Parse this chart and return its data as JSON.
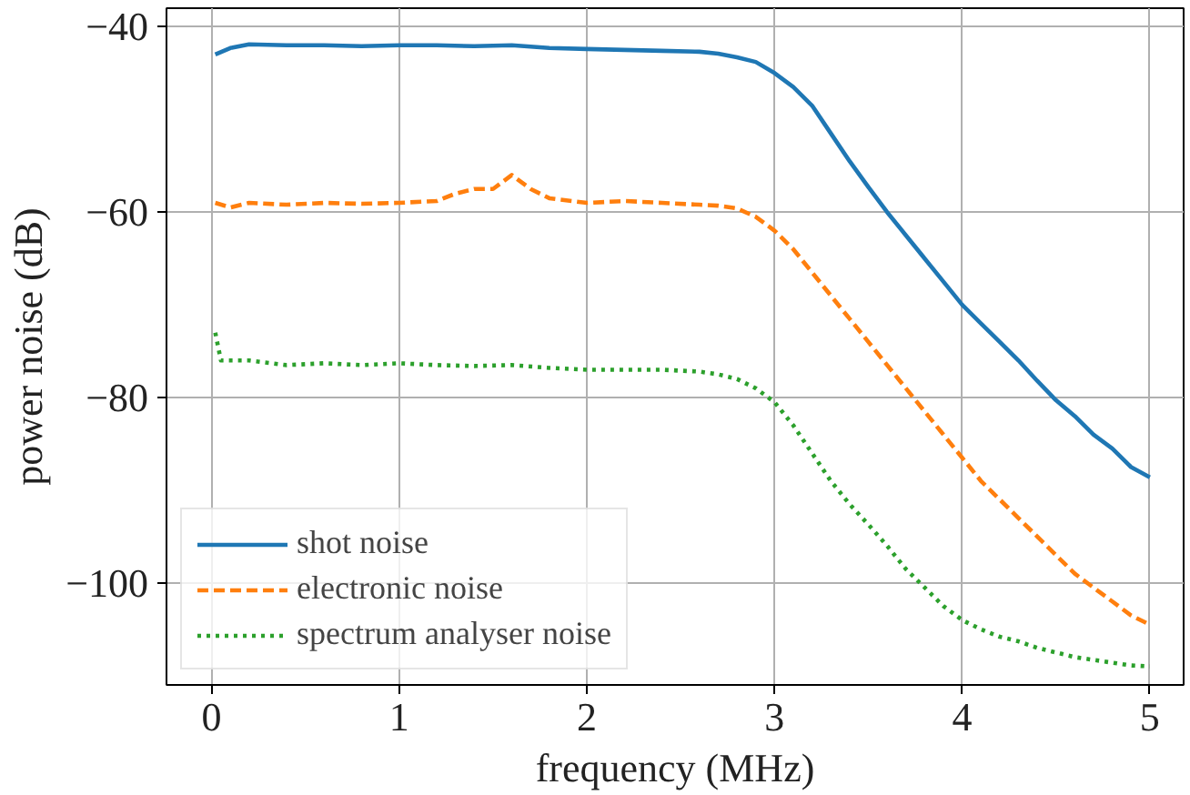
{
  "chart_data": {
    "type": "line",
    "xlabel": "frequency (MHz)",
    "ylabel": "power noise (dB)",
    "xlim": [
      -0.24,
      5.18
    ],
    "ylim": [
      -111,
      -38
    ],
    "xticks": [
      0,
      1,
      2,
      3,
      4,
      5
    ],
    "yticks": [
      {
        "value": -40,
        "label": "−40"
      },
      {
        "value": -60,
        "label": "−60"
      },
      {
        "value": -80,
        "label": "−80"
      },
      {
        "value": -100,
        "label": "−100"
      }
    ],
    "grid": true,
    "legend": "bottom left",
    "series": [
      {
        "name": "shot noise",
        "color": "#1f77b4",
        "line_style": "solid",
        "x": [
          0.02,
          0.1,
          0.2,
          0.4,
          0.6,
          0.8,
          1.0,
          1.2,
          1.4,
          1.6,
          1.8,
          2.0,
          2.2,
          2.4,
          2.6,
          2.7,
          2.8,
          2.9,
          3.0,
          3.1,
          3.2,
          3.3,
          3.4,
          3.5,
          3.6,
          3.7,
          3.8,
          3.9,
          4.0,
          4.1,
          4.2,
          4.3,
          4.4,
          4.5,
          4.6,
          4.7,
          4.8,
          4.9,
          5.0
        ],
        "values": [
          -43,
          -42.3,
          -41.9,
          -42,
          -42,
          -42.1,
          -42,
          -42,
          -42.1,
          -42,
          -42.3,
          -42.4,
          -42.5,
          -42.6,
          -42.7,
          -42.9,
          -43.3,
          -43.8,
          -45,
          -46.5,
          -48.5,
          -51.5,
          -54.5,
          -57.3,
          -60,
          -62.5,
          -65,
          -67.5,
          -70,
          -72,
          -74,
          -76,
          -78.2,
          -80.3,
          -82,
          -84,
          -85.5,
          -87.5,
          -88.6
        ]
      },
      {
        "name": "electronic noise",
        "color": "#ff7f0e",
        "line_style": "dashed",
        "x": [
          0.02,
          0.1,
          0.2,
          0.4,
          0.6,
          0.8,
          1.0,
          1.2,
          1.3,
          1.4,
          1.5,
          1.6,
          1.7,
          1.8,
          2.0,
          2.2,
          2.4,
          2.6,
          2.7,
          2.8,
          2.9,
          3.0,
          3.1,
          3.2,
          3.3,
          3.4,
          3.5,
          3.6,
          3.7,
          3.8,
          3.9,
          4.0,
          4.1,
          4.2,
          4.3,
          4.4,
          4.5,
          4.6,
          4.7,
          4.8,
          4.9,
          5.0
        ],
        "values": [
          -59,
          -59.5,
          -59,
          -59.2,
          -59,
          -59.1,
          -59,
          -58.8,
          -58,
          -57.5,
          -57.5,
          -56,
          -57.5,
          -58.5,
          -59,
          -58.8,
          -59,
          -59.2,
          -59.3,
          -59.6,
          -60.5,
          -62,
          -64,
          -66.5,
          -69,
          -71.5,
          -74,
          -76.5,
          -79,
          -81.5,
          -84,
          -86.5,
          -89,
          -91,
          -93,
          -95,
          -97,
          -99,
          -100.5,
          -102,
          -103.5,
          -104.5
        ]
      },
      {
        "name": "spectrum analyser noise",
        "color": "#2ca02c",
        "line_style": "dotted",
        "x": [
          0.02,
          0.05,
          0.2,
          0.4,
          0.6,
          0.8,
          1.0,
          1.2,
          1.4,
          1.6,
          1.8,
          2.0,
          2.2,
          2.4,
          2.6,
          2.7,
          2.8,
          2.9,
          3.0,
          3.1,
          3.2,
          3.3,
          3.4,
          3.5,
          3.6,
          3.7,
          3.8,
          3.9,
          4.0,
          4.1,
          4.2,
          4.3,
          4.4,
          4.5,
          4.6,
          4.7,
          4.8,
          4.9,
          5.0
        ],
        "values": [
          -73,
          -76,
          -76,
          -76.5,
          -76.3,
          -76.5,
          -76.3,
          -76.5,
          -76.6,
          -76.5,
          -76.8,
          -77,
          -77,
          -77,
          -77.2,
          -77.5,
          -78,
          -79,
          -80.5,
          -83,
          -86,
          -89,
          -91.5,
          -93.7,
          -96,
          -98.5,
          -100.5,
          -102.5,
          -104,
          -105,
          -105.8,
          -106.3,
          -107,
          -107.5,
          -108,
          -108.3,
          -108.6,
          -108.9,
          -109
        ]
      }
    ]
  }
}
